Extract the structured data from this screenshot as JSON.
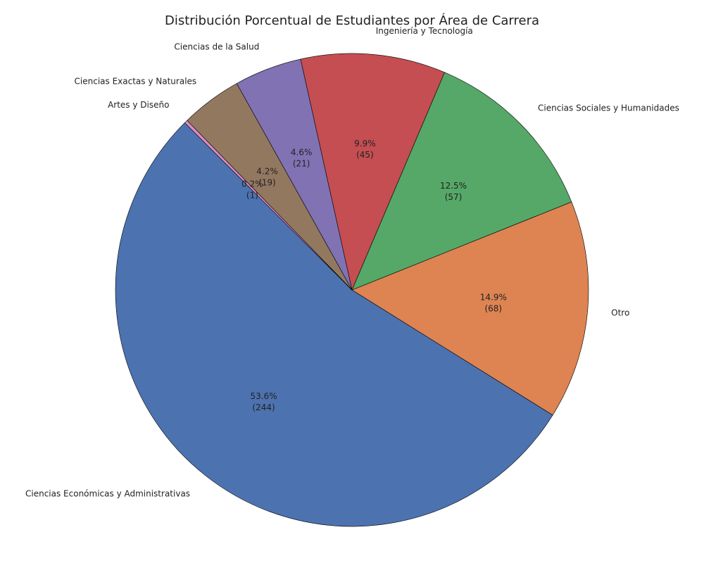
{
  "chart_data": {
    "type": "pie",
    "title": "Distribución Porcentual de Estudiantes por Área de Carrera",
    "start_angle_deg": 135,
    "direction": "counterclockwise",
    "slices": [
      {
        "label": "Ciencias Económicas y Administrativas",
        "count": 244,
        "percent_label": "53.6%",
        "count_label": "(244)",
        "color": "#4c72b0"
      },
      {
        "label": "Otro",
        "count": 68,
        "percent_label": "14.9%",
        "count_label": "(68)",
        "color": "#dd8452"
      },
      {
        "label": "Ciencias Sociales y Humanidades",
        "count": 57,
        "percent_label": "12.5%",
        "count_label": "(57)",
        "color": "#55a868"
      },
      {
        "label": "Ingeniería y Tecnología",
        "count": 45,
        "percent_label": "9.9%",
        "count_label": "(45)",
        "color": "#c44e52"
      },
      {
        "label": "Ciencias de la Salud",
        "count": 21,
        "percent_label": "4.6%",
        "count_label": "(21)",
        "color": "#8172b3"
      },
      {
        "label": "Ciencias Exactas y Naturales",
        "count": 19,
        "percent_label": "4.2%",
        "count_label": "(19)",
        "color": "#937860"
      },
      {
        "label": "Artes y Diseño",
        "count": 1,
        "percent_label": "0.2%",
        "count_label": "(1)",
        "color": "#da8bc3"
      }
    ]
  }
}
